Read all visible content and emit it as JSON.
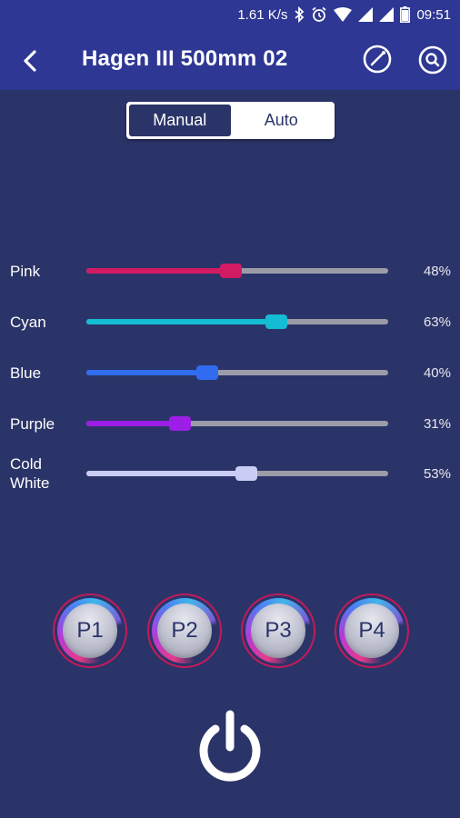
{
  "status_bar": {
    "speed": "1.61 K/s",
    "time": "09:51",
    "icons": [
      "bluetooth-icon",
      "alarm-icon",
      "wifi-icon",
      "signal-icon",
      "signal-icon",
      "battery-icon"
    ]
  },
  "app_bar": {
    "title": "Hagen III 500mm 02",
    "icons": [
      "back-arrow-icon",
      "compass-icon",
      "search-icon"
    ]
  },
  "mode": {
    "options": [
      "Manual",
      "Auto"
    ],
    "selected": "Manual"
  },
  "channels": [
    {
      "label": "Pink",
      "value": 48,
      "value_text": "48%",
      "color": "#d31b63"
    },
    {
      "label": "Cyan",
      "value": 63,
      "value_text": "63%",
      "color": "#14bcd4"
    },
    {
      "label": "Blue",
      "value": 40,
      "value_text": "40%",
      "color": "#2f6cf0"
    },
    {
      "label": "Purple",
      "value": 31,
      "value_text": "31%",
      "color": "#9d1ee6"
    },
    {
      "label": "Cold\nWhite",
      "value": 53,
      "value_text": "53%",
      "color": "#c9ccf4"
    }
  ],
  "presets": [
    "P1",
    "P2",
    "P3",
    "P4"
  ],
  "colors": {
    "background": "#2b3468",
    "app_bar": "#2e3793",
    "track": "#9c9ca8"
  },
  "power": {
    "icon": "power-icon"
  }
}
